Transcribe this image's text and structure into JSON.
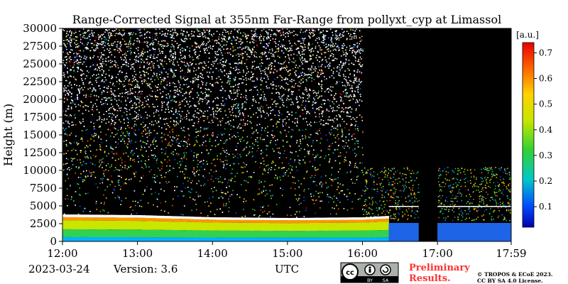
{
  "chart_data": {
    "type": "heatmap",
    "title": "Range-Corrected Signal at 355nm Far-Range from pollyxt_cyp at Limassol",
    "xlabel": "UTC",
    "ylabel": "Height (m)",
    "x_ticks": [
      "12:00",
      "13:00",
      "14:00",
      "15:00",
      "16:00",
      "17:00",
      "17:59"
    ],
    "xlim": [
      "12:00",
      "17:59"
    ],
    "y_ticks": [
      0,
      2500,
      5000,
      7500,
      10000,
      12500,
      15000,
      17500,
      20000,
      22500,
      25000,
      27500,
      30000
    ],
    "ylim": [
      0,
      30000
    ],
    "colorbar": {
      "label": "[a.u.]",
      "ticks": [
        0.1,
        0.2,
        0.3,
        0.4,
        0.5,
        0.6,
        0.7
      ],
      "range": [
        0.02,
        0.74
      ],
      "colormap": [
        "#0000b0",
        "#0050ff",
        "#00c8c8",
        "#32d232",
        "#c8e600",
        "#ffd200",
        "#ff6400",
        "#e60000"
      ]
    },
    "features": {
      "boundary_layer_top_m": [
        3800,
        3700,
        3400,
        3300,
        3400,
        3600
      ],
      "boundary_layer_time": [
        "12:00",
        "13:00",
        "14:00",
        "15:00",
        "16:00",
        "16:20"
      ],
      "no_signal_intervals": [
        [
          "16:45",
          "17:00"
        ]
      ],
      "high_altitude_noise_until": "16:00"
    }
  },
  "footer": {
    "date": "2023-03-24",
    "version": "Version: 3.6",
    "utc": "UTC",
    "cc_badge": {
      "cc": "cc",
      "by": "BY",
      "sa": "SA"
    },
    "preliminary": [
      "Preliminary",
      "Results."
    ],
    "copyright": [
      "© TROPOS & ECoE 2023.",
      "CC BY SA 4.0 License."
    ],
    "accent": "#ff3030"
  }
}
